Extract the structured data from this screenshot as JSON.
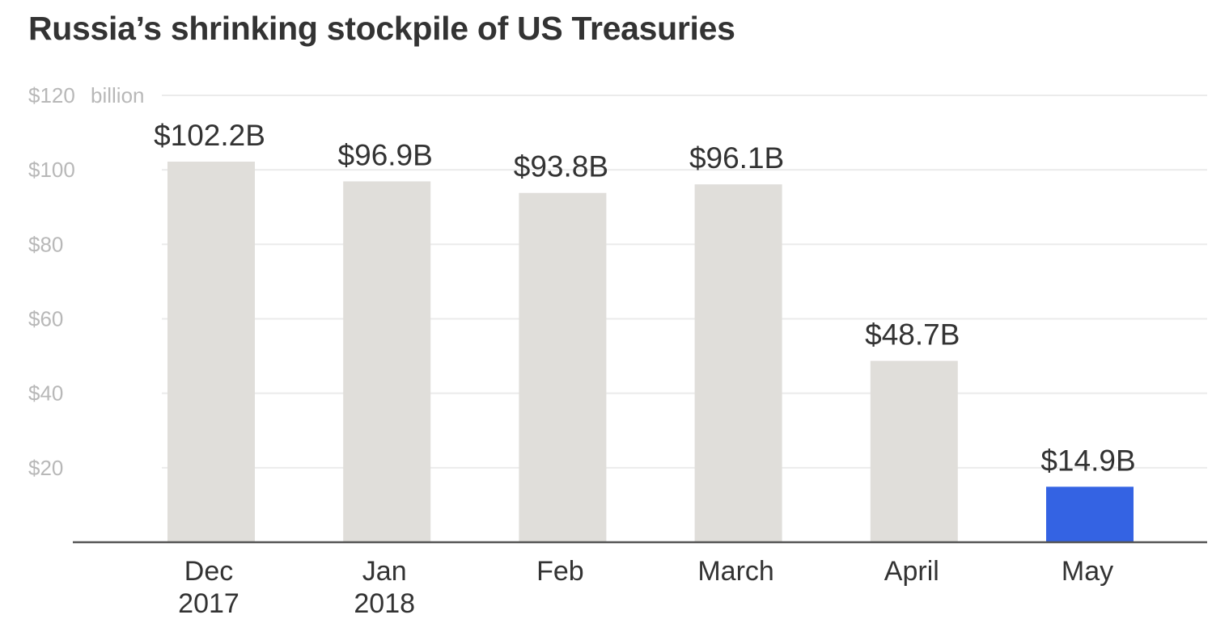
{
  "title": "Russia’s shrinking stockpile of US Treasuries",
  "chart_data": {
    "type": "bar",
    "categories": [
      [
        "Dec",
        "2017"
      ],
      [
        "Jan",
        "2018"
      ],
      [
        "Feb"
      ],
      [
        "March"
      ],
      [
        "April"
      ],
      [
        "May"
      ]
    ],
    "values": [
      102.2,
      96.9,
      93.8,
      96.1,
      48.7,
      14.9
    ],
    "value_labels": [
      "$102.2B",
      "$96.9B",
      "$93.8B",
      "$96.1B",
      "$48.7B",
      "$14.9B"
    ],
    "highlight_index": 5,
    "ylim": [
      0,
      120
    ],
    "yticks": [
      {
        "value": 120,
        "label": "$120"
      },
      {
        "value": 100,
        "label": "$100"
      },
      {
        "value": 80,
        "label": "$80"
      },
      {
        "value": 60,
        "label": "$60"
      },
      {
        "value": 40,
        "label": "$40"
      },
      {
        "value": 20,
        "label": "$20"
      }
    ],
    "unit_label": "billion",
    "grid": true,
    "colors": {
      "bar": "#e0deda",
      "highlight": "#3463e3",
      "grid": "#ebebeb",
      "axis": "#555555"
    }
  }
}
